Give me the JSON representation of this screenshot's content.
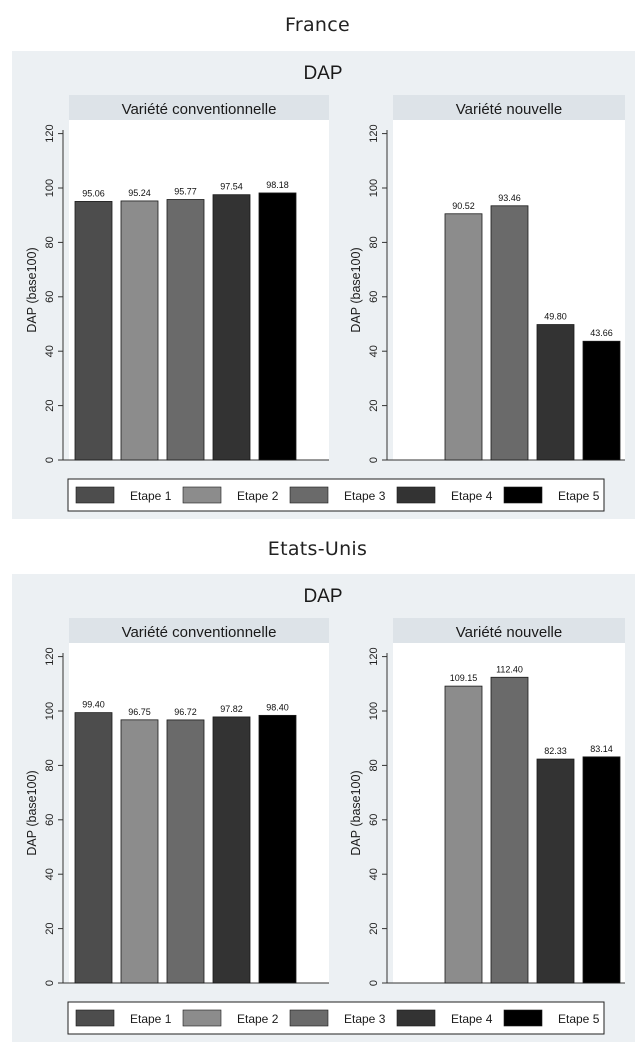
{
  "chart_data": [
    {
      "type": "bar",
      "region": "France",
      "title": "DAP",
      "ylabel": "DAP (base100)",
      "ylim": [
        0,
        125
      ],
      "yticks": [
        "0",
        "20",
        "40",
        "60",
        "80",
        "100",
        "120"
      ],
      "legend_position": "bottom",
      "legend": [
        "Etape 1",
        "Etape 2",
        "Etape 3",
        "Etape 4",
        "Etape 5"
      ],
      "colors": [
        "#4d4d4d",
        "#8c8c8c",
        "#6a6a6a",
        "#333333",
        "#000000"
      ],
      "panels": [
        {
          "subtitle": "Variété conventionnelle",
          "values": [
            95.06,
            95.24,
            95.77,
            97.54,
            98.18
          ],
          "labels": [
            "95.06",
            "95.24",
            "95.77",
            "97.54",
            "98.18"
          ]
        },
        {
          "subtitle": "Variété nouvelle",
          "values": [
            null,
            90.52,
            93.46,
            49.8,
            43.66
          ],
          "labels": [
            "",
            "90.52",
            "93.46",
            "49.80",
            "43.66"
          ]
        }
      ]
    },
    {
      "type": "bar",
      "region": "Etats-Unis",
      "title": "DAP",
      "ylabel": "DAP (base100)",
      "ylim": [
        0,
        125
      ],
      "yticks": [
        "0",
        "20",
        "40",
        "60",
        "80",
        "100",
        "120"
      ],
      "legend_position": "bottom",
      "legend": [
        "Etape 1",
        "Etape 2",
        "Etape 3",
        "Etape 4",
        "Etape 5"
      ],
      "colors": [
        "#4d4d4d",
        "#8c8c8c",
        "#6a6a6a",
        "#333333",
        "#000000"
      ],
      "panels": [
        {
          "subtitle": "Variété conventionnelle",
          "values": [
            99.4,
            96.75,
            96.72,
            97.82,
            98.4
          ],
          "labels": [
            "99.40",
            "96.75",
            "96.72",
            "97.82",
            "98.40"
          ]
        },
        {
          "subtitle": "Variété nouvelle",
          "values": [
            null,
            109.15,
            112.4,
            82.33,
            83.14
          ],
          "labels": [
            "",
            "109.15",
            "112.40",
            "82.33",
            "83.14"
          ]
        }
      ]
    }
  ]
}
